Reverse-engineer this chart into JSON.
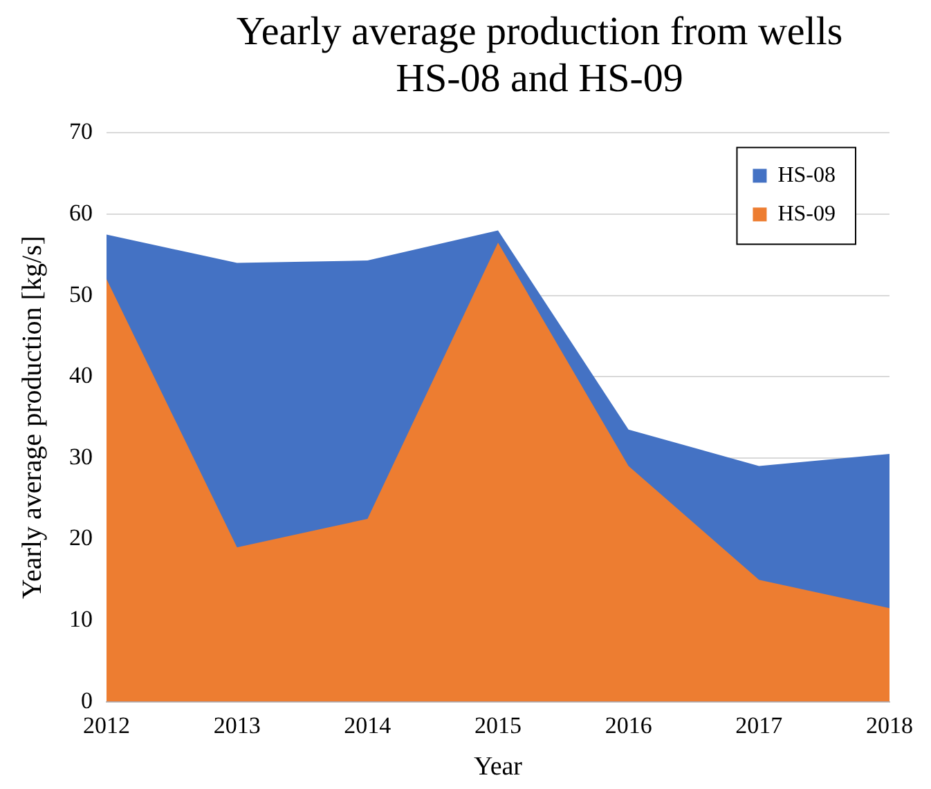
{
  "chart_data": {
    "type": "area",
    "title": "Yearly average production from wells HS-08 and HS-09",
    "xlabel": "Year",
    "ylabel": "Yearly average production [kg/s]",
    "categories": [
      "2012",
      "2013",
      "2014",
      "2015",
      "2016",
      "2017",
      "2018"
    ],
    "series": [
      {
        "name": "HS-08",
        "color": "#4472c4",
        "values": [
          57.5,
          54,
          54.3,
          58,
          33.5,
          29,
          30.5
        ]
      },
      {
        "name": "HS-09",
        "color": "#ed7d31",
        "values": [
          52,
          19,
          22.5,
          56.5,
          29,
          15,
          11.5
        ]
      }
    ],
    "ylim": [
      0,
      70
    ],
    "yticks": [
      0,
      10,
      20,
      30,
      40,
      50,
      60,
      70
    ],
    "grid": "y",
    "legend": "top right"
  }
}
